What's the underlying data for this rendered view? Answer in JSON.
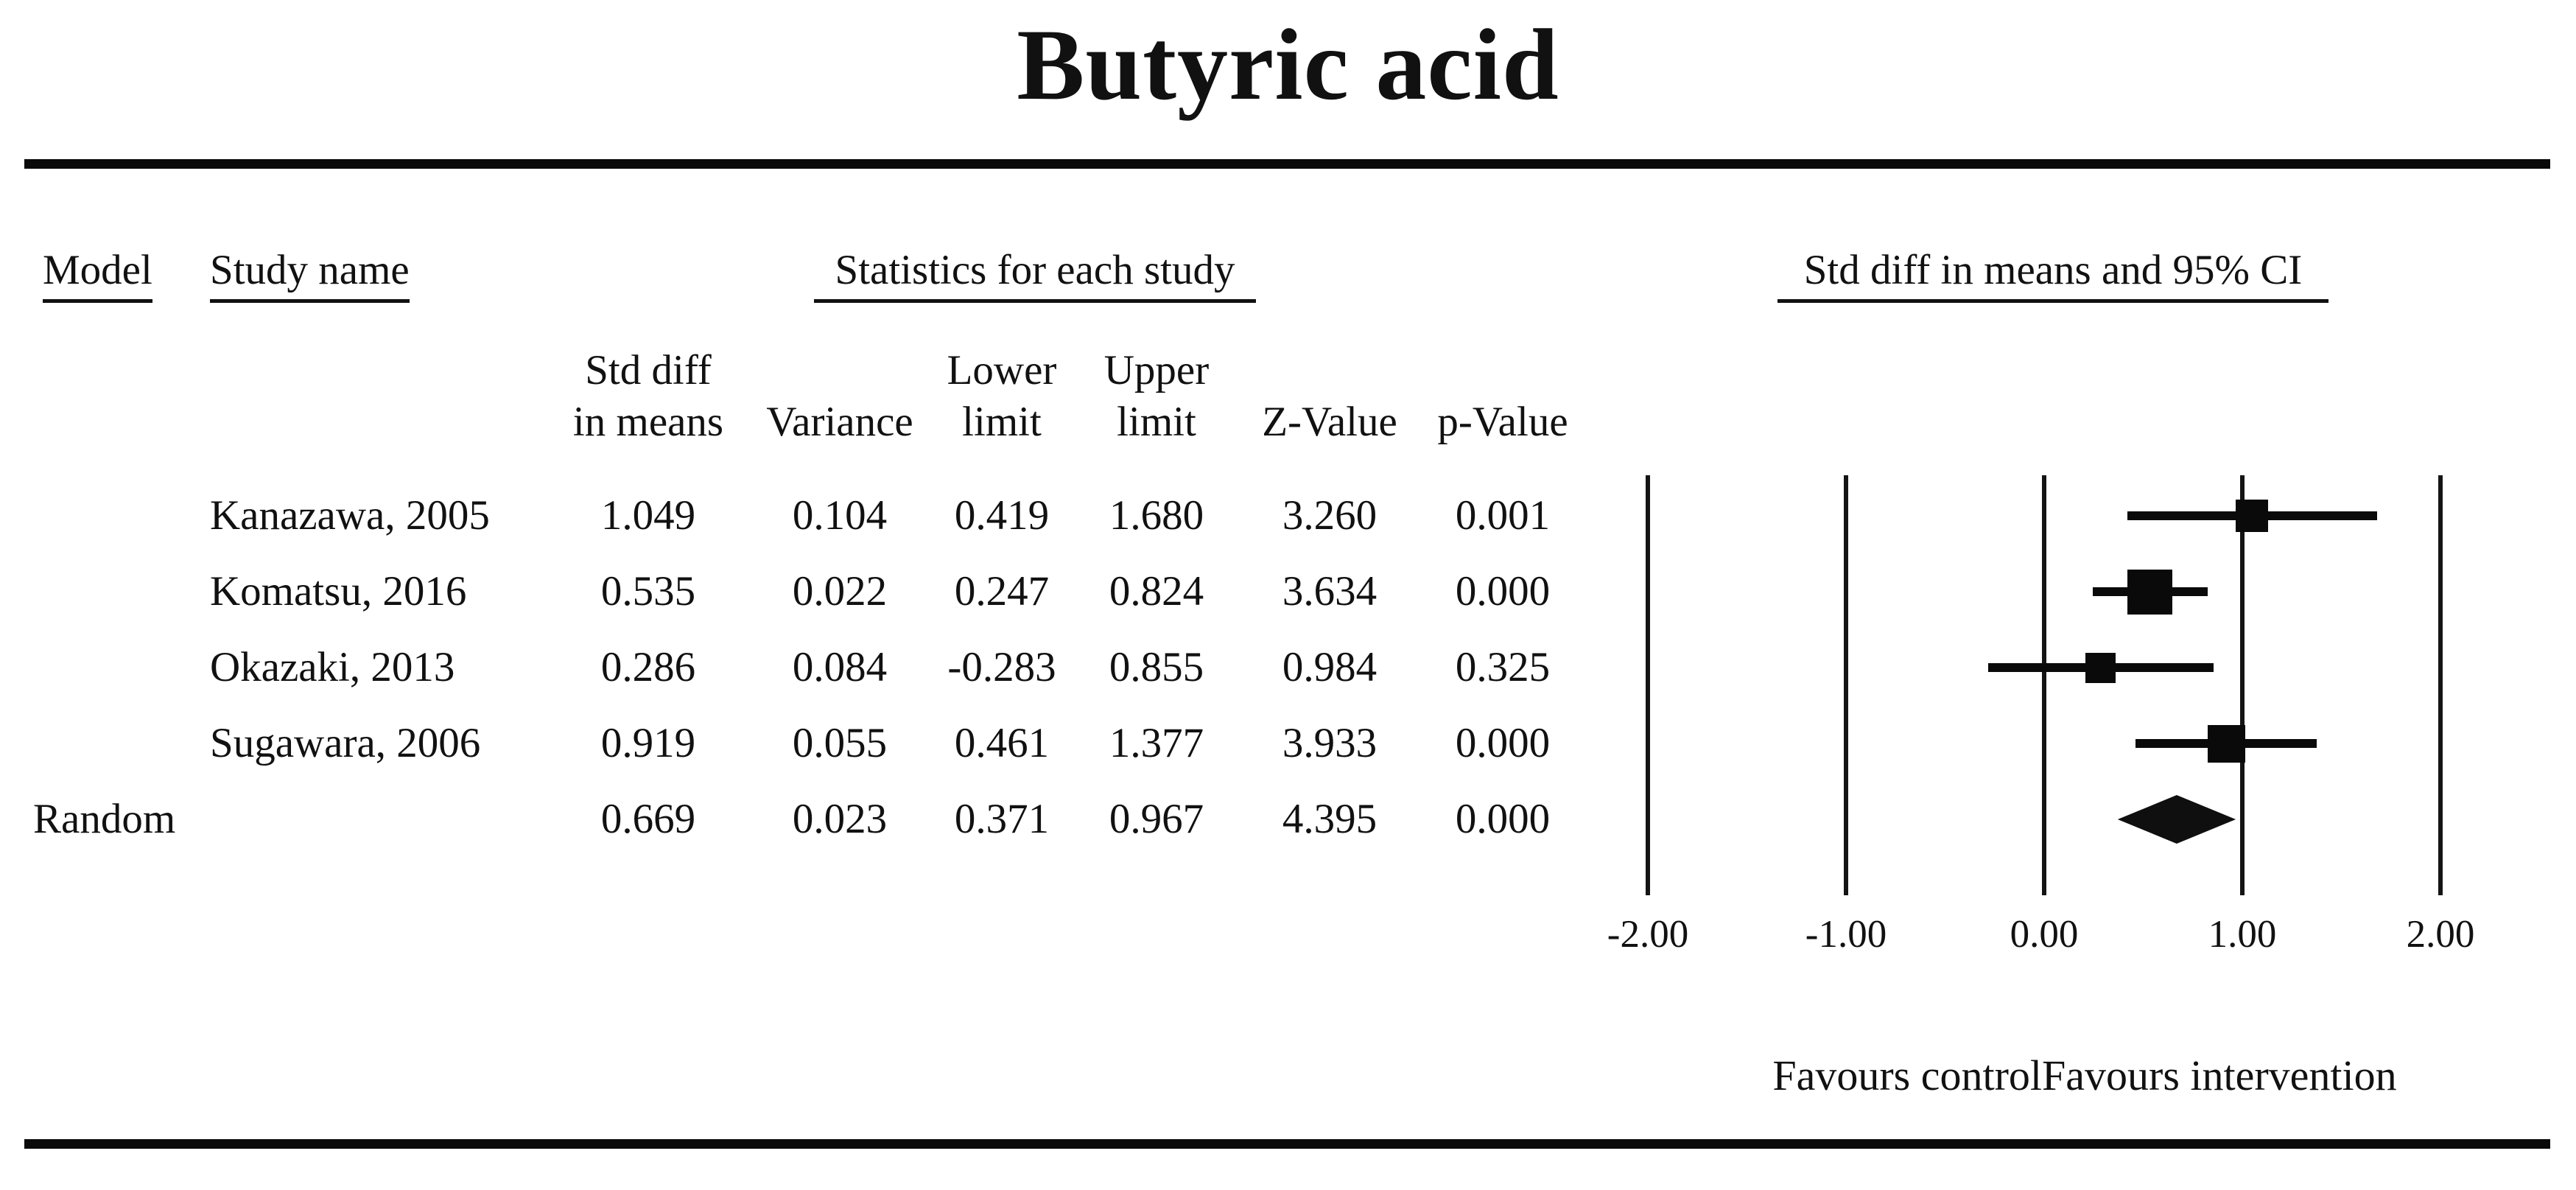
{
  "title": "Butyric acid",
  "headers": {
    "model": "Model",
    "study_name": "Study name",
    "stats_group": "Statistics for each study",
    "plot_group": "Std diff in means and 95% CI"
  },
  "sub_headers": [
    {
      "key": "std_diff",
      "line1": "Std diff",
      "line2": "in means"
    },
    {
      "key": "variance",
      "line1": "",
      "line2": "Variance"
    },
    {
      "key": "lower",
      "line1": "Lower",
      "line2": "limit"
    },
    {
      "key": "upper",
      "line1": "Upper",
      "line2": "limit"
    },
    {
      "key": "z",
      "line1": "",
      "line2": "Z-Value"
    },
    {
      "key": "p",
      "line1": "",
      "line2": "p-Value"
    }
  ],
  "rows": [
    {
      "model": "",
      "study": "Kanazawa, 2005",
      "std_diff": "1.049",
      "variance": "0.104",
      "lower": "0.419",
      "upper": "1.680",
      "z": "3.260",
      "p": "0.001",
      "marker": "square",
      "marker_size_px": 44
    },
    {
      "model": "",
      "study": "Komatsu, 2016",
      "std_diff": "0.535",
      "variance": "0.022",
      "lower": "0.247",
      "upper": "0.824",
      "z": "3.634",
      "p": "0.000",
      "marker": "square",
      "marker_size_px": 61
    },
    {
      "model": "",
      "study": "Okazaki, 2013",
      "std_diff": "0.286",
      "variance": "0.084",
      "lower": "-0.283",
      "upper": "0.855",
      "z": "0.984",
      "p": "0.325",
      "marker": "square",
      "marker_size_px": 41
    },
    {
      "model": "",
      "study": "Sugawara, 2006",
      "std_diff": "0.919",
      "variance": "0.055",
      "lower": "0.461",
      "upper": "1.377",
      "z": "3.933",
      "p": "0.000",
      "marker": "square",
      "marker_size_px": 51
    },
    {
      "model": "Random",
      "study": "",
      "std_diff": "0.669",
      "variance": "0.023",
      "lower": "0.371",
      "upper": "0.967",
      "z": "4.395",
      "p": "0.000",
      "marker": "diamond",
      "marker_size_px": 66
    }
  ],
  "axis": {
    "tick_labels": [
      "-2.00",
      "-1.00",
      "0.00",
      "1.00",
      "2.00"
    ],
    "tick_values": [
      -2,
      -1,
      0,
      1,
      2
    ],
    "min": -2,
    "max": 2
  },
  "footer": {
    "left_label": "Favours control",
    "right_label": "Favours intervention"
  },
  "colors": {
    "ink": "#111111",
    "marker": "#0a0a0a",
    "background": "#ffffff"
  },
  "chart_data": {
    "type": "scatter",
    "subtype": "forest-plot",
    "title": "Butyric acid",
    "effect_measure": "Std diff in means",
    "pooled_model": "Random",
    "categories": [
      "Kanazawa, 2005",
      "Komatsu, 2016",
      "Okazaki, 2013",
      "Sugawara, 2006",
      "Random"
    ],
    "series": [
      {
        "name": "Std diff in means",
        "values": [
          1.049,
          0.535,
          0.286,
          0.919,
          0.669
        ]
      },
      {
        "name": "Variance",
        "values": [
          0.104,
          0.022,
          0.084,
          0.055,
          0.023
        ]
      },
      {
        "name": "Lower limit",
        "values": [
          0.419,
          0.247,
          -0.283,
          0.461,
          0.371
        ]
      },
      {
        "name": "Upper limit",
        "values": [
          1.68,
          0.824,
          0.855,
          1.377,
          0.967
        ]
      },
      {
        "name": "Z-Value",
        "values": [
          3.26,
          3.634,
          0.984,
          3.933,
          4.395
        ]
      },
      {
        "name": "p-Value",
        "values": [
          0.001,
          0.0,
          0.325,
          0.0,
          0.0
        ]
      }
    ],
    "xlim": [
      -2,
      2
    ],
    "x_ticks": [
      "-2.00",
      "-1.00",
      "0.00",
      "1.00",
      "2.00"
    ],
    "x_axis_annotations": [
      "Favours control",
      "Favours intervention"
    ],
    "grid": "vertical lines at each x tick",
    "legend": "none"
  }
}
